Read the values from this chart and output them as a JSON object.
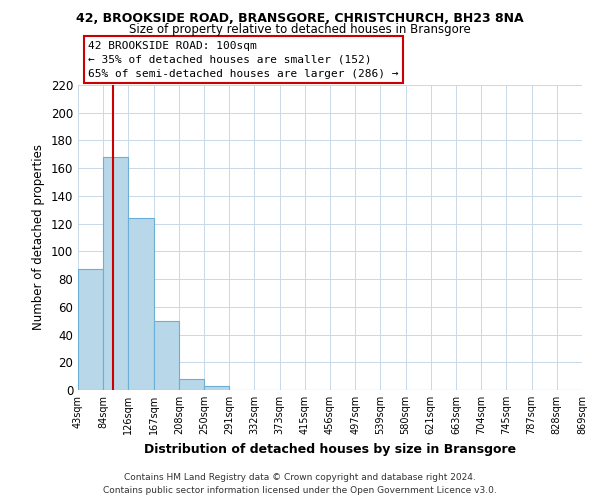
{
  "title": "42, BROOKSIDE ROAD, BRANSGORE, CHRISTCHURCH, BH23 8NA",
  "subtitle": "Size of property relative to detached houses in Bransgore",
  "xlabel": "Distribution of detached houses by size in Bransgore",
  "ylabel": "Number of detached properties",
  "bar_values": [
    87,
    168,
    124,
    50,
    8,
    3,
    0,
    0,
    0,
    0,
    0,
    0,
    0,
    0,
    0,
    0,
    0,
    0,
    0,
    0
  ],
  "bin_labels": [
    "43sqm",
    "84sqm",
    "126sqm",
    "167sqm",
    "208sqm",
    "250sqm",
    "291sqm",
    "332sqm",
    "373sqm",
    "415sqm",
    "456sqm",
    "497sqm",
    "539sqm",
    "580sqm",
    "621sqm",
    "663sqm",
    "704sqm",
    "745sqm",
    "787sqm",
    "828sqm",
    "869sqm"
  ],
  "bar_color": "#b8d8ea",
  "bar_edge_color": "#6baed6",
  "property_line_color": "#cc0000",
  "annotation_text_line1": "42 BROOKSIDE ROAD: 100sqm",
  "annotation_text_line2": "← 35% of detached houses are smaller (152)",
  "annotation_text_line3": "65% of semi-detached houses are larger (286) →",
  "ylim": [
    0,
    220
  ],
  "yticks": [
    0,
    20,
    40,
    60,
    80,
    100,
    120,
    140,
    160,
    180,
    200,
    220
  ],
  "footer_line1": "Contains HM Land Registry data © Crown copyright and database right 2024.",
  "footer_line2": "Contains public sector information licensed under the Open Government Licence v3.0.",
  "bg_color": "#ffffff",
  "grid_color": "#c8d8e8",
  "num_bins": 20
}
